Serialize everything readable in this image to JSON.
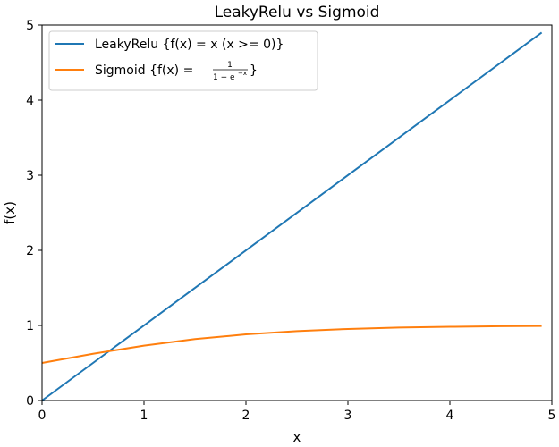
{
  "chart_data": {
    "type": "line",
    "title": "LeakyRelu vs Sigmoid",
    "xlabel": "x",
    "ylabel": "f(x)",
    "xlim": [
      0,
      5
    ],
    "ylim": [
      0,
      5
    ],
    "xticks": [
      "0",
      "1",
      "2",
      "3",
      "4",
      "5"
    ],
    "yticks": [
      "0",
      "1",
      "2",
      "3",
      "4",
      "5"
    ],
    "grid": false,
    "legend_position": "top-left",
    "series": [
      {
        "name": "LeakyRelu {f(x) = x (x >= 0)}",
        "color": "#1f77b4",
        "x": [
          0.0,
          4.9
        ],
        "y": [
          0.0,
          4.9
        ]
      },
      {
        "name_prefix": "Sigmoid {f(x) = ",
        "name_fraction": {
          "numerator": "1",
          "denominator": "1 + e",
          "exponent": "−x"
        },
        "name_suffix": "}",
        "color": "#ff7f0e",
        "x": [
          0.0,
          0.5,
          1.0,
          1.5,
          2.0,
          2.5,
          3.0,
          3.5,
          4.0,
          4.5,
          4.9
        ],
        "y": [
          0.5,
          0.622,
          0.731,
          0.818,
          0.881,
          0.924,
          0.953,
          0.971,
          0.982,
          0.989,
          0.993
        ]
      }
    ]
  }
}
